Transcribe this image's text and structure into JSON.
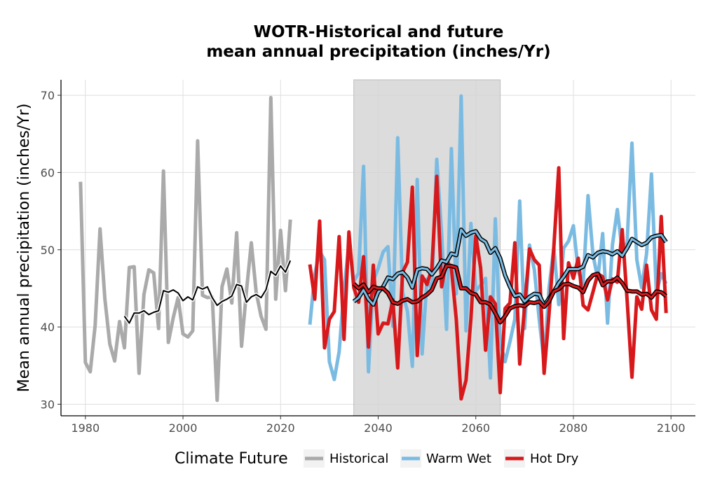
{
  "chart_data": {
    "type": "line",
    "title": "WOTR-Historical and future",
    "subtitle": "mean annual precipitation (inches/Yr)",
    "xlabel": "",
    "ylabel": "Mean annual precipitation (inches/Yr)",
    "xlim": [
      1975,
      2105
    ],
    "ylim": [
      28.5,
      72
    ],
    "x_ticks": [
      1980,
      2000,
      2020,
      2040,
      2060,
      2080,
      2100
    ],
    "y_ticks": [
      30,
      40,
      50,
      60,
      70
    ],
    "grid": true,
    "shaded_period": [
      2035,
      2065
    ],
    "legend": {
      "title": "Climate Future",
      "placement": "bottom",
      "entries": [
        {
          "name": "Historical",
          "color": "#aaaaaa"
        },
        {
          "name": "Warm Wet",
          "color": "#7bbbe2"
        },
        {
          "name": "Hot Dry",
          "color": "#d7191c"
        }
      ]
    },
    "series": [
      {
        "name": "Historical",
        "color": "#aaaaaa",
        "x": [
          1979,
          1980,
          1981,
          1982,
          1983,
          1984,
          1985,
          1986,
          1987,
          1988,
          1989,
          1990,
          1991,
          1992,
          1993,
          1994,
          1995,
          1996,
          1997,
          1998,
          1999,
          2000,
          2001,
          2002,
          2003,
          2004,
          2005,
          2006,
          2007,
          2008,
          2009,
          2010,
          2011,
          2012,
          2013,
          2014,
          2015,
          2016,
          2017,
          2018,
          2019,
          2020,
          2021,
          2022
        ],
        "y": [
          58.8,
          35.4,
          34.2,
          40.2,
          52.7,
          43.6,
          37.8,
          35.6,
          40.7,
          37.3,
          47.7,
          47.8,
          34.0,
          44.2,
          47.4,
          47.0,
          39.8,
          60.2,
          38.0,
          41.2,
          43.8,
          39.1,
          38.7,
          39.5,
          64.1,
          44.1,
          43.8,
          43.9,
          30.5,
          45.2,
          47.5,
          43.1,
          52.2,
          37.5,
          44.6,
          50.9,
          44.5,
          41.4,
          39.7,
          69.7,
          43.6,
          52.5,
          44.7,
          53.9
        ]
      },
      {
        "name": "Historical moving average",
        "color": "#000000",
        "x": [
          1988,
          1989,
          1990,
          1991,
          1992,
          1993,
          1994,
          1995,
          1996,
          1997,
          1998,
          1999,
          2000,
          2001,
          2002,
          2003,
          2004,
          2005,
          2006,
          2007,
          2008,
          2009,
          2010,
          2011,
          2012,
          2013,
          2014,
          2015,
          2016,
          2017,
          2018,
          2019,
          2020,
          2021,
          2022
        ],
        "y": [
          41.4,
          40.5,
          41.8,
          41.8,
          42.1,
          41.6,
          41.9,
          42.1,
          44.7,
          44.5,
          44.8,
          44.4,
          43.4,
          43.9,
          43.5,
          45.2,
          44.9,
          45.2,
          43.8,
          42.8,
          43.3,
          43.6,
          44.0,
          45.5,
          45.3,
          43.2,
          43.9,
          44.2,
          43.8,
          44.8,
          47.2,
          46.7,
          47.9,
          47.1,
          48.6
        ]
      },
      {
        "name": "Warm Wet",
        "color": "#7bbbe2",
        "x": [
          2026,
          2027,
          2028,
          2029,
          2030,
          2031,
          2032,
          2033,
          2034,
          2035,
          2036,
          2037,
          2038,
          2039,
          2040,
          2041,
          2042,
          2043,
          2044,
          2045,
          2046,
          2047,
          2048,
          2049,
          2050,
          2051,
          2052,
          2053,
          2054,
          2055,
          2056,
          2057,
          2058,
          2059,
          2060,
          2061,
          2062,
          2063,
          2064,
          2065,
          2066,
          2067,
          2068,
          2069,
          2070,
          2071,
          2072,
          2073,
          2074,
          2075,
          2076,
          2077,
          2078,
          2079,
          2080,
          2081,
          2082,
          2083,
          2084,
          2085,
          2086,
          2087,
          2088,
          2089,
          2090,
          2091,
          2092,
          2093,
          2094,
          2095,
          2096,
          2097,
          2098,
          2099
        ],
        "y": [
          40.3,
          46.8,
          49.8,
          48.7,
          35.5,
          33.2,
          36.8,
          44.8,
          50.8,
          45.9,
          47.0,
          60.8,
          34.2,
          46.0,
          47.6,
          49.7,
          50.4,
          40.1,
          64.5,
          44.5,
          42.0,
          34.9,
          59.1,
          36.5,
          46.2,
          44.8,
          61.7,
          52.1,
          39.7,
          63.1,
          44.3,
          69.9,
          39.5,
          53.4,
          44.7,
          45.4,
          46.3,
          33.4,
          54.0,
          38.1,
          35.5,
          38.1,
          41.0,
          56.3,
          39.8,
          50.6,
          47.4,
          41.0,
          35.4,
          45.0,
          50.3,
          42.9,
          50.2,
          51.1,
          53.1,
          47.2,
          45.6,
          57.0,
          49.4,
          46.2,
          52.1,
          40.5,
          50.6,
          55.2,
          49.9,
          50.9,
          63.8,
          48.7,
          45.1,
          49.5,
          59.8,
          44.4,
          46.9,
          45.6
        ]
      },
      {
        "name": "Warm Wet moving average",
        "color": "#7bbbe2",
        "x": [
          2035,
          2036,
          2037,
          2038,
          2039,
          2040,
          2041,
          2042,
          2043,
          2044,
          2045,
          2046,
          2047,
          2048,
          2049,
          2050,
          2051,
          2052,
          2053,
          2054,
          2055,
          2056,
          2057,
          2058,
          2059,
          2060,
          2061,
          2062,
          2063,
          2064,
          2065,
          2066,
          2067,
          2068,
          2069,
          2070,
          2071,
          2072,
          2073,
          2074,
          2075,
          2076,
          2077,
          2078,
          2079,
          2080,
          2081,
          2082,
          2083,
          2084,
          2085,
          2086,
          2087,
          2088,
          2089,
          2090,
          2091,
          2092,
          2093,
          2094,
          2095,
          2096,
          2097,
          2098,
          2099
        ],
        "y": [
          43.3,
          43.8,
          44.8,
          43.6,
          42.9,
          44.5,
          45.2,
          46.4,
          46.2,
          46.9,
          47.1,
          46.4,
          45.1,
          47.4,
          47.6,
          47.5,
          46.8,
          47.6,
          48.6,
          48.4,
          49.5,
          49.3,
          52.6,
          51.8,
          52.2,
          52.4,
          51.4,
          51.0,
          49.6,
          50.2,
          48.9,
          46.7,
          45.2,
          44.0,
          44.2,
          43.3,
          43.9,
          44.3,
          44.2,
          42.8,
          43.7,
          44.6,
          45.7,
          46.5,
          47.5,
          47.5,
          47.5,
          47.8,
          49.3,
          49.0,
          49.6,
          49.8,
          49.7,
          49.4,
          49.8,
          49.2,
          50.2,
          51.4,
          51.0,
          50.6,
          50.9,
          51.6,
          51.8,
          51.9,
          51.0
        ]
      },
      {
        "name": "Hot Dry",
        "color": "#d7191c",
        "x": [
          2026,
          2027,
          2028,
          2029,
          2030,
          2031,
          2032,
          2033,
          2034,
          2035,
          2036,
          2037,
          2038,
          2039,
          2040,
          2041,
          2042,
          2043,
          2044,
          2045,
          2046,
          2047,
          2048,
          2049,
          2050,
          2051,
          2052,
          2053,
          2054,
          2055,
          2056,
          2057,
          2058,
          2059,
          2060,
          2061,
          2062,
          2063,
          2064,
          2065,
          2066,
          2067,
          2068,
          2069,
          2070,
          2071,
          2072,
          2073,
          2074,
          2075,
          2076,
          2077,
          2078,
          2079,
          2080,
          2081,
          2082,
          2083,
          2084,
          2085,
          2086,
          2087,
          2088,
          2089,
          2090,
          2091,
          2092,
          2093,
          2094,
          2095,
          2096,
          2097,
          2098,
          2099
        ],
        "y": [
          48.1,
          43.6,
          53.7,
          37.3,
          41.0,
          42.0,
          51.7,
          38.4,
          52.3,
          45.1,
          43.2,
          49.1,
          37.4,
          48.0,
          39.1,
          40.5,
          40.4,
          43.5,
          34.7,
          47.1,
          48.4,
          58.1,
          36.3,
          46.6,
          45.5,
          47.6,
          59.5,
          45.2,
          48.6,
          47.6,
          41.0,
          30.7,
          33.1,
          41.1,
          51.8,
          47.6,
          37.0,
          43.9,
          43.0,
          31.5,
          42.4,
          43.1,
          50.9,
          35.2,
          42.6,
          50.1,
          48.7,
          48.0,
          34.0,
          41.6,
          50.4,
          60.6,
          38.5,
          48.3,
          46.3,
          48.9,
          42.8,
          42.2,
          44.5,
          46.9,
          46.5,
          43.5,
          46.2,
          45.8,
          52.6,
          43.6,
          33.5,
          43.9,
          42.3,
          48.0,
          42.2,
          41.0,
          54.3,
          41.8
        ]
      },
      {
        "name": "Hot Dry moving average",
        "color": "#d7191c",
        "x": [
          2035,
          2036,
          2037,
          2038,
          2039,
          2040,
          2041,
          2042,
          2043,
          2044,
          2045,
          2046,
          2047,
          2048,
          2049,
          2050,
          2051,
          2052,
          2053,
          2054,
          2055,
          2056,
          2057,
          2058,
          2059,
          2060,
          2061,
          2062,
          2063,
          2064,
          2065,
          2066,
          2067,
          2068,
          2069,
          2070,
          2071,
          2072,
          2073,
          2074,
          2075,
          2076,
          2077,
          2078,
          2079,
          2080,
          2081,
          2082,
          2083,
          2084,
          2085,
          2086,
          2087,
          2088,
          2089,
          2090,
          2091,
          2092,
          2093,
          2094,
          2095,
          2096,
          2097,
          2098,
          2099
        ],
        "y": [
          45.6,
          45.0,
          45.5,
          44.5,
          45.2,
          45.0,
          45.0,
          44.4,
          43.2,
          43.0,
          43.4,
          43.6,
          43.2,
          43.3,
          43.8,
          44.2,
          44.8,
          46.3,
          46.5,
          47.9,
          47.9,
          47.7,
          45.0,
          45.0,
          44.4,
          44.2,
          43.2,
          43.2,
          42.9,
          41.8,
          40.6,
          41.4,
          42.4,
          42.7,
          42.8,
          42.7,
          43.2,
          43.1,
          43.3,
          42.6,
          43.3,
          44.6,
          44.9,
          45.5,
          45.6,
          45.3,
          45.1,
          44.5,
          46.0,
          46.7,
          46.9,
          45.4,
          45.9,
          45.9,
          46.4,
          45.7,
          44.7,
          44.6,
          44.6,
          44.2,
          44.3,
          43.8,
          44.6,
          44.5,
          44.0
        ]
      }
    ]
  }
}
